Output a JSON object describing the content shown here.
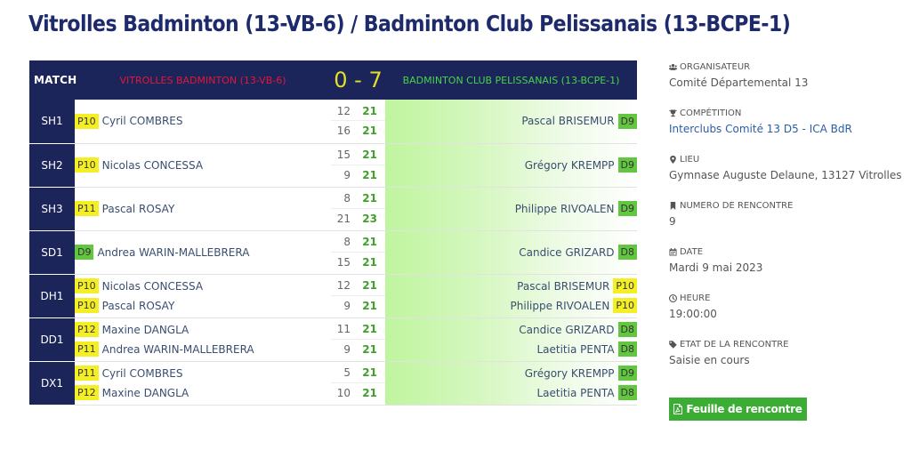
{
  "page": {
    "title": "Vitrolles Badminton (13-VB-6) / Badminton Club Pelissanais (13-BCPE-1)"
  },
  "header": {
    "match_label": "MATCH",
    "home_team": "VITROLLES BADMINTON (13-VB-6)",
    "score": "0 - 7",
    "away_team": "BADMINTON CLUB PELISSANAIS (13-BCPE-1)"
  },
  "matches": [
    {
      "id": "SH1",
      "home": [
        {
          "rank": "P10",
          "rank_color": "yellow",
          "name": "Cyril COMBRES"
        }
      ],
      "sets": [
        {
          "home": "12",
          "away": "21"
        },
        {
          "home": "16",
          "away": "21"
        }
      ],
      "away": [
        {
          "rank": "D9",
          "rank_color": "green",
          "name": "Pascal BRISEMUR"
        }
      ]
    },
    {
      "id": "SH2",
      "home": [
        {
          "rank": "P10",
          "rank_color": "yellow",
          "name": "Nicolas CONCESSA"
        }
      ],
      "sets": [
        {
          "home": "15",
          "away": "21"
        },
        {
          "home": "9",
          "away": "21"
        }
      ],
      "away": [
        {
          "rank": "D9",
          "rank_color": "green",
          "name": "Grégory KREMPP"
        }
      ]
    },
    {
      "id": "SH3",
      "home": [
        {
          "rank": "P11",
          "rank_color": "yellow",
          "name": "Pascal ROSAY"
        }
      ],
      "sets": [
        {
          "home": "8",
          "away": "21"
        },
        {
          "home": "21",
          "away": "23"
        }
      ],
      "away": [
        {
          "rank": "D9",
          "rank_color": "green",
          "name": "Philippe RIVOALEN"
        }
      ]
    },
    {
      "id": "SD1",
      "home": [
        {
          "rank": "D9",
          "rank_color": "green",
          "name": "Andrea WARIN-MALLEBRERA"
        }
      ],
      "sets": [
        {
          "home": "8",
          "away": "21"
        },
        {
          "home": "15",
          "away": "21"
        }
      ],
      "away": [
        {
          "rank": "D8",
          "rank_color": "green",
          "name": "Candice GRIZARD"
        }
      ]
    },
    {
      "id": "DH1",
      "home": [
        {
          "rank": "P10",
          "rank_color": "yellow",
          "name": "Nicolas CONCESSA"
        },
        {
          "rank": "P10",
          "rank_color": "yellow",
          "name": "Pascal ROSAY"
        }
      ],
      "sets": [
        {
          "home": "12",
          "away": "21"
        },
        {
          "home": "9",
          "away": "21"
        }
      ],
      "away": [
        {
          "rank": "P10",
          "rank_color": "yellow",
          "name": "Pascal BRISEMUR"
        },
        {
          "rank": "P10",
          "rank_color": "yellow",
          "name": "Philippe RIVOALEN"
        }
      ]
    },
    {
      "id": "DD1",
      "home": [
        {
          "rank": "P12",
          "rank_color": "yellow",
          "name": "Maxine DANGLA"
        },
        {
          "rank": "P11",
          "rank_color": "yellow",
          "name": "Andrea WARIN-MALLEBRERA"
        }
      ],
      "sets": [
        {
          "home": "11",
          "away": "21"
        },
        {
          "home": "9",
          "away": "21"
        }
      ],
      "away": [
        {
          "rank": "D8",
          "rank_color": "green",
          "name": "Candice GRIZARD"
        },
        {
          "rank": "D8",
          "rank_color": "green",
          "name": "Laetitia PENTA"
        }
      ]
    },
    {
      "id": "DX1",
      "home": [
        {
          "rank": "P11",
          "rank_color": "yellow",
          "name": "Cyril COMBRES"
        },
        {
          "rank": "P12",
          "rank_color": "yellow",
          "name": "Maxine DANGLA"
        }
      ],
      "sets": [
        {
          "home": "5",
          "away": "21"
        },
        {
          "home": "10",
          "away": "21"
        }
      ],
      "away": [
        {
          "rank": "D9",
          "rank_color": "green",
          "name": "Grégory KREMPP"
        },
        {
          "rank": "D8",
          "rank_color": "green",
          "name": "Laetitia PENTA"
        }
      ]
    }
  ],
  "sidebar": {
    "organizer": {
      "icon": "users-icon",
      "label": "ORGANISATEUR",
      "value": "Comité Départemental 13"
    },
    "competition": {
      "icon": "trophy-icon",
      "label": "COMPÉTITION",
      "value": "Interclubs Comité 13 D5 - ICA BdR"
    },
    "location": {
      "icon": "map-marker-icon",
      "label": "LIEU",
      "value": "Gymnase Auguste Delaune, 13127 Vitrolles"
    },
    "number": {
      "icon": "bookmark-icon",
      "label": "NUMERO DE RENCONTRE",
      "value": "9"
    },
    "date": {
      "icon": "calendar-icon",
      "label": "DATE",
      "value": "Mardi 9 mai 2023"
    },
    "time": {
      "icon": "clock-icon",
      "label": "HEURE",
      "value": "19:00:00"
    },
    "state": {
      "icon": "tag-icon",
      "label": "ETAT DE LA RENCONTRE",
      "value": "Saisie en cours"
    }
  },
  "sheet_button": {
    "icon": "pdf-file-icon",
    "label": "Feuille de rencontre"
  },
  "colors": {
    "navy": "#1b2559",
    "home_red": "#e0183b",
    "score_yellow": "#e7dd2a",
    "away_green": "#48d24b",
    "badge_yellow": "#f4ee25",
    "badge_green": "#62c641",
    "button_green": "#3cad34"
  }
}
